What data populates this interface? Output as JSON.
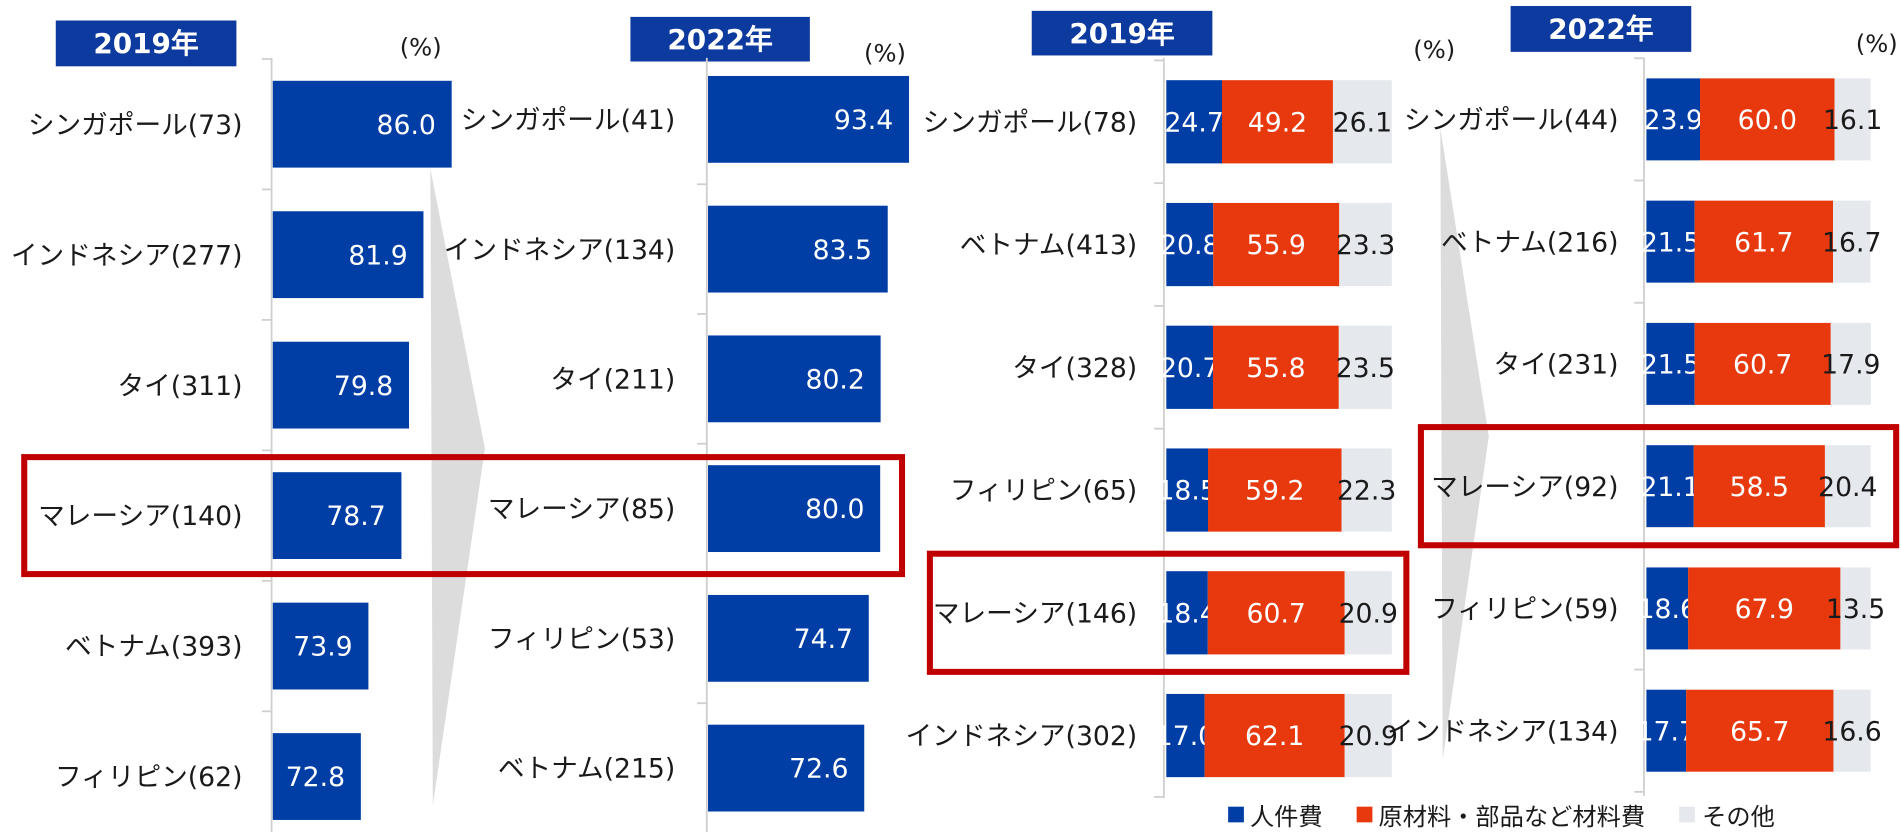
{
  "colors": {
    "bar": "#003ea6",
    "title_bg": "#0d3a9e",
    "highlight_box": "#c00000",
    "arrow": "#dcdcdc",
    "axis": "#cfcfcf"
  },
  "chart_data": [
    {
      "type": "bar",
      "orientation": "horizontal",
      "title": "2019年",
      "unit": "(%)",
      "categories": [
        "シンガポール(73)",
        "インドネシア(277)",
        "タイ(311)",
        "マレーシア(140)",
        "ベトナム(393)",
        "フィリピン(62)"
      ],
      "values": [
        86.0,
        81.9,
        79.8,
        78.7,
        73.9,
        72.8
      ],
      "value_labels": [
        "86.0",
        "81.9",
        "79.8",
        "78.7",
        "73.9",
        "72.8"
      ],
      "xlim": [
        60,
        100
      ],
      "grid": false,
      "highlight_index": 3
    },
    {
      "type": "bar",
      "orientation": "horizontal",
      "title": "2022年",
      "unit": "(%)",
      "categories": [
        "シンガポール(41)",
        "インドネシア(134)",
        "タイ(211)",
        "マレーシア(85)",
        "フィリピン(53)",
        "ベトナム(215)"
      ],
      "values": [
        93.4,
        83.5,
        80.2,
        80.0,
        74.7,
        72.6
      ],
      "value_labels": [
        "93.4",
        "83.5",
        "80.2",
        "80.0",
        "74.7",
        "72.6"
      ],
      "xlim": [
        0,
        100
      ],
      "grid": false,
      "highlight_index": 3
    },
    {
      "type": "bar",
      "orientation": "horizontal",
      "stacked": true,
      "title": "2019年",
      "unit": "(%)",
      "categories": [
        "シンガポール(78)",
        "ベトナム(413)",
        "タイ(328)",
        "フィリピン(65)",
        "マレーシア(146)",
        "インドネシア(302)"
      ],
      "series": [
        {
          "name": "人件費",
          "color": "#003ea6",
          "values": [
            24.7,
            20.8,
            20.7,
            18.5,
            18.4,
            17.0
          ],
          "labels": [
            "24.7",
            "20.8",
            "20.7",
            "18.5",
            "18.4",
            "17.0"
          ]
        },
        {
          "name": "原材料・部品など材料費",
          "color": "#e8390e",
          "values": [
            49.2,
            55.9,
            55.8,
            59.2,
            60.7,
            62.1
          ],
          "labels": [
            "49.2",
            "55.9",
            "55.8",
            "59.2",
            "60.7",
            "62.1"
          ]
        },
        {
          "name": "その他",
          "color": "#e5e8ed",
          "values": [
            26.1,
            23.3,
            23.5,
            22.3,
            20.9,
            20.9
          ],
          "labels": [
            "26.1",
            "23.3",
            "23.5",
            "22.3",
            "20.9",
            "20.9"
          ]
        }
      ],
      "xlim": [
        0,
        100
      ],
      "grid": false,
      "legend_position": "bottom",
      "highlight_index": 4
    },
    {
      "type": "bar",
      "orientation": "horizontal",
      "stacked": true,
      "title": "2022年",
      "unit": "(%)",
      "categories": [
        "シンガポール(44)",
        "ベトナム(216)",
        "タイ(231)",
        "マレーシア(92)",
        "フィリピン(59)",
        "インドネシア(134)"
      ],
      "series": [
        {
          "name": "人件費",
          "color": "#003ea6",
          "values": [
            23.9,
            21.5,
            21.5,
            21.1,
            18.6,
            17.7
          ],
          "labels": [
            "23.9",
            "21.5",
            "21.5",
            "21.1",
            "18.6",
            "17.7"
          ]
        },
        {
          "name": "原材料・部品など材料費",
          "color": "#e8390e",
          "values": [
            60.0,
            61.7,
            60.7,
            58.5,
            67.9,
            65.7
          ],
          "labels": [
            "60.0",
            "61.7",
            "60.7",
            "58.5",
            "67.9",
            "65.7"
          ]
        },
        {
          "name": "その他",
          "color": "#e5e8ed",
          "values": [
            16.1,
            16.7,
            17.9,
            20.4,
            13.5,
            16.6
          ],
          "labels": [
            "16.1",
            "16.7",
            "17.9",
            "20.4",
            "13.5",
            "16.6"
          ]
        }
      ],
      "xlim": [
        0,
        100
      ],
      "grid": false,
      "legend_position": "bottom",
      "highlight_index": 3
    }
  ]
}
